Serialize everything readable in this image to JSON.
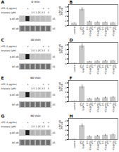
{
  "chart_data": [
    {
      "type": "blot",
      "label": "A",
      "title": "0 min",
      "row_labels": [
        "LPS (1 μg/mL)",
        "Anatase (μM)"
      ],
      "lanes": [
        [
          "-",
          "+",
          "-",
          "-",
          "+",
          "+"
        ],
        [
          "-",
          "-",
          "2.5",
          "1.25",
          "2.5",
          "5"
        ]
      ],
      "bands": [
        {
          "name": "p-NF-κB",
          "mw": "65",
          "color": "#cccccc",
          "gray": [
            0.75,
            0.15,
            0.72,
            0.74,
            0.74,
            0.76
          ]
        },
        {
          "name": "NF-κB",
          "mw": "65",
          "color": "#bbbbbb",
          "gray": [
            0.45,
            0.44,
            0.44,
            0.44,
            0.44,
            0.44
          ]
        }
      ]
    },
    {
      "type": "bar",
      "label": "B",
      "categories": [
        "control",
        "LPS\n1μg/mL",
        "2.5",
        "5",
        "2.5",
        "5"
      ],
      "group_labels": [
        null,
        null,
        "+1μg/mL\nLPS",
        "+1μg/mL\nLPS",
        "+1μg/mL\nLPS",
        "+1μg/mL\nLPS"
      ],
      "values": [
        0.55,
        3.5,
        0.85,
        0.75,
        0.75,
        0.65
      ],
      "errors": [
        0.08,
        0.38,
        0.12,
        0.09,
        0.09,
        0.08
      ],
      "ylim": [
        0,
        4.5
      ],
      "yticks": [
        0,
        1,
        2,
        3,
        4
      ],
      "ylabel": "p-NF-κB\n/NF-κB",
      "color": "#c8c8c8"
    },
    {
      "type": "blot",
      "label": "C",
      "title": "30 min",
      "row_labels": [
        "LPS (1 μg/mL)",
        "Anatase (μM)"
      ],
      "lanes": [
        [
          "-",
          "+",
          "-",
          "-",
          "+",
          "+"
        ],
        [
          "-",
          "-",
          "2.5",
          "1.25",
          "2.5",
          "5"
        ]
      ],
      "bands": [
        {
          "name": "p-NF-κB",
          "mw": "65",
          "color": "#cccccc",
          "gray": [
            0.78,
            0.1,
            0.75,
            0.76,
            0.76,
            0.77
          ]
        },
        {
          "name": "NF-κB",
          "mw": "65",
          "color": "#bbbbbb",
          "gray": [
            0.44,
            0.44,
            0.44,
            0.44,
            0.44,
            0.44
          ]
        }
      ]
    },
    {
      "type": "bar",
      "label": "D",
      "categories": [
        "control",
        "LPS\n1μg/mL",
        "2.5",
        "5",
        "2.5",
        "5"
      ],
      "group_labels": [
        null,
        null,
        "+1μg/mL\nLPS",
        "+1μg/mL\nLPS",
        "+1μg/mL\nLPS",
        "+1μg/mL\nLPS"
      ],
      "values": [
        0.12,
        3.8,
        0.45,
        0.55,
        0.6,
        0.65
      ],
      "errors": [
        0.04,
        0.48,
        0.08,
        0.09,
        0.12,
        0.09
      ],
      "ylim": [
        0,
        4.5
      ],
      "yticks": [
        0,
        1,
        2,
        3,
        4
      ],
      "ylabel": "p-NF-κB\n/NF-κB",
      "color": "#c8c8c8"
    },
    {
      "type": "blot",
      "label": "E",
      "title": "60 min",
      "row_labels": [
        "LPS (1 μg/mL)",
        "Anatase (μM)"
      ],
      "lanes": [
        [
          "-",
          "+",
          "-",
          "-",
          "+",
          "+"
        ],
        [
          "-",
          "-",
          "2.5",
          "1.25",
          "2.5",
          "5"
        ]
      ],
      "bands": [
        {
          "name": "p-NF-κB",
          "mw": "65",
          "color": "#cccccc",
          "gray": [
            0.78,
            0.12,
            0.72,
            0.73,
            0.72,
            0.7
          ]
        },
        {
          "name": "NF-κB",
          "mw": "65",
          "color": "#bbbbbb",
          "gray": [
            0.44,
            0.44,
            0.44,
            0.44,
            0.44,
            0.44
          ]
        }
      ]
    },
    {
      "type": "bar",
      "label": "F",
      "categories": [
        "control",
        "LPS\n1μg/mL",
        "2.5",
        "5",
        "2.5",
        "5"
      ],
      "group_labels": [
        null,
        null,
        "+1μg/mL\nLPS",
        "+1μg/mL\nLPS",
        "+1μg/mL\nLPS",
        "+1μg/mL\nLPS"
      ],
      "values": [
        0.12,
        3.2,
        0.65,
        0.75,
        0.85,
        0.95
      ],
      "errors": [
        0.04,
        0.42,
        0.12,
        0.13,
        0.18,
        0.18
      ],
      "ylim": [
        0,
        4.5
      ],
      "yticks": [
        0,
        1,
        2,
        3,
        4
      ],
      "ylabel": "p-NF-κB\n/NF-κB",
      "color": "#c8c8c8"
    },
    {
      "type": "blot",
      "label": "G",
      "title": "90 min",
      "row_labels": [
        "LPS (1 μg/mL)",
        "Anatase (μM)"
      ],
      "lanes": [
        [
          "-",
          "+",
          "-",
          "-",
          "+",
          "+"
        ],
        [
          "-",
          "-",
          "2.5",
          "1.25",
          "2.5",
          "5"
        ]
      ],
      "bands": [
        {
          "name": "p-NF-κB",
          "mw": "65",
          "color": "#cccccc",
          "gray": [
            0.78,
            0.13,
            0.7,
            0.71,
            0.69,
            0.67
          ]
        },
        {
          "name": "NF-κB",
          "mw": "65",
          "color": "#bbbbbb",
          "gray": [
            0.44,
            0.44,
            0.44,
            0.44,
            0.44,
            0.44
          ]
        }
      ]
    },
    {
      "type": "bar",
      "label": "H",
      "categories": [
        "control",
        "LPS\n1μg/mL",
        "2.5",
        "5",
        "2.5",
        "5"
      ],
      "group_labels": [
        null,
        null,
        "+1μg/mL\nLPS",
        "+1μg/mL\nLPS",
        "+1μg/mL\nLPS",
        "+1μg/mL\nLPS"
      ],
      "values": [
        0.12,
        3.0,
        0.7,
        0.8,
        0.95,
        1.05
      ],
      "errors": [
        0.04,
        0.38,
        0.13,
        0.14,
        0.18,
        0.22
      ],
      "ylim": [
        0,
        4.5
      ],
      "yticks": [
        0,
        1,
        2,
        3,
        4
      ],
      "ylabel": "p-NF-κB\n/NF-κB",
      "color": "#c8c8c8"
    }
  ]
}
